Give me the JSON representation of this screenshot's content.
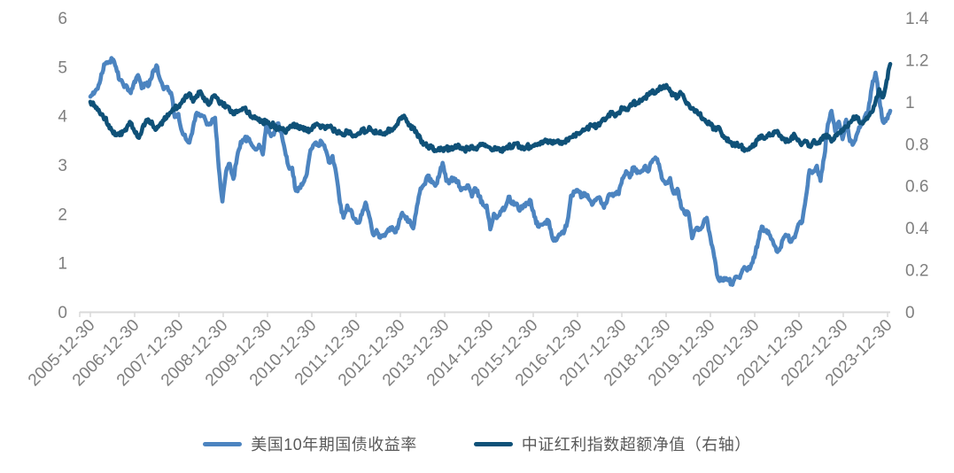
{
  "chart_data": {
    "type": "line",
    "title": "",
    "grid": false,
    "legend_position": "bottom",
    "x_axis": {
      "frequency": "monthly",
      "start": "2005-12",
      "end": "2024-02",
      "tick_labels": [
        "2005-12-30",
        "2006-12-30",
        "2007-12-30",
        "2008-12-30",
        "2009-12-30",
        "2010-12-30",
        "2011-12-30",
        "2012-12-30",
        "2013-12-30",
        "2014-12-30",
        "2015-12-30",
        "2016-12-30",
        "2017-12-30",
        "2018-12-30",
        "2019-12-30",
        "2020-12-30",
        "2021-12-30",
        "2022-12-30",
        "2023-12-30"
      ]
    },
    "left_axis": {
      "range": [
        0,
        6
      ],
      "tick_labels": [
        "0",
        "1",
        "2",
        "3",
        "4",
        "5",
        "6"
      ]
    },
    "right_axis": {
      "range": [
        0,
        1.4
      ],
      "tick_labels": [
        "0",
        "0.2",
        "0.4",
        "0.6",
        "0.8",
        "1",
        "1.2",
        "1.4"
      ]
    },
    "series": [
      {
        "name": "美国10年期国债收益率",
        "axis": "left",
        "color": "#4c84c0",
        "values": [
          4.39,
          4.45,
          4.55,
          4.85,
          5.05,
          5.1,
          5.15,
          4.99,
          4.73,
          4.63,
          4.6,
          4.46,
          4.7,
          4.83,
          4.56,
          4.65,
          4.63,
          4.9,
          5.03,
          4.74,
          4.54,
          4.59,
          4.47,
          3.97,
          4.04,
          3.67,
          3.53,
          3.45,
          3.77,
          4.06,
          3.99,
          3.99,
          3.83,
          3.85,
          3.96,
          2.93,
          2.25,
          2.87,
          3.02,
          2.71,
          3.16,
          3.47,
          3.53,
          3.52,
          3.4,
          3.31,
          3.41,
          3.21,
          3.85,
          3.63,
          3.61,
          3.84,
          3.69,
          3.31,
          2.97,
          2.94,
          2.47,
          2.53,
          2.63,
          2.81,
          3.3,
          3.42,
          3.41,
          3.47,
          3.32,
          3.05,
          3.18,
          2.82,
          2.23,
          1.92,
          2.17,
          2.08,
          1.89,
          1.83,
          1.98,
          2.23,
          1.95,
          1.59,
          1.67,
          1.51,
          1.57,
          1.65,
          1.72,
          1.62,
          1.78,
          2.02,
          1.89,
          1.87,
          1.7,
          2.16,
          2.52,
          2.6,
          2.78,
          2.64,
          2.57,
          2.75,
          3.04,
          2.67,
          2.66,
          2.73,
          2.67,
          2.48,
          2.53,
          2.58,
          2.35,
          2.52,
          2.35,
          2.18,
          2.17,
          1.68,
          2.0,
          1.94,
          2.05,
          2.12,
          2.35,
          2.2,
          2.21,
          2.06,
          2.16,
          2.21,
          2.27,
          1.94,
          1.74,
          1.78,
          1.83,
          1.84,
          1.49,
          1.46,
          1.57,
          1.6,
          1.84,
          2.37,
          2.45,
          2.45,
          2.36,
          2.4,
          2.29,
          2.21,
          2.31,
          2.3,
          2.12,
          2.33,
          2.38,
          2.42,
          2.4,
          2.72,
          2.87,
          2.74,
          2.95,
          2.83,
          2.85,
          2.96,
          2.86,
          3.05,
          3.15,
          3.01,
          2.69,
          2.63,
          2.73,
          2.41,
          2.51,
          2.14,
          2.0,
          2.02,
          1.5,
          1.68,
          1.69,
          1.78,
          1.92,
          1.51,
          1.13,
          0.7,
          0.64,
          0.65,
          0.66,
          0.55,
          0.72,
          0.69,
          0.88,
          0.84,
          0.93,
          1.11,
          1.44,
          1.74,
          1.65,
          1.58,
          1.45,
          1.24,
          1.3,
          1.52,
          1.55,
          1.43,
          1.52,
          1.79,
          1.83,
          2.32,
          2.89,
          2.85,
          2.98,
          2.67,
          3.15,
          3.83,
          4.1,
          3.68,
          3.88,
          3.52,
          3.92,
          3.48,
          3.44,
          3.64,
          3.81,
          3.97,
          4.09,
          4.59,
          4.88,
          4.37,
          3.88,
          3.95,
          4.1
        ]
      },
      {
        "name": "中证红利指数超额净值（右轴）",
        "axis": "right",
        "color": "#0f5178",
        "values": [
          1.0,
          0.98,
          0.96,
          0.94,
          0.92,
          0.89,
          0.86,
          0.84,
          0.84,
          0.86,
          0.88,
          0.9,
          0.86,
          0.83,
          0.86,
          0.9,
          0.91,
          0.89,
          0.87,
          0.89,
          0.91,
          0.94,
          0.95,
          0.97,
          0.98,
          1.0,
          1.03,
          1.04,
          1.0,
          1.03,
          1.05,
          1.02,
          0.99,
          1.01,
          1.03,
          1.0,
          0.99,
          0.98,
          0.96,
          0.94,
          0.95,
          0.96,
          0.97,
          0.95,
          0.93,
          0.92,
          0.92,
          0.9,
          0.91,
          0.89,
          0.89,
          0.87,
          0.87,
          0.86,
          0.87,
          0.88,
          0.89,
          0.87,
          0.88,
          0.86,
          0.87,
          0.88,
          0.89,
          0.88,
          0.87,
          0.88,
          0.87,
          0.86,
          0.85,
          0.84,
          0.86,
          0.85,
          0.84,
          0.85,
          0.87,
          0.86,
          0.88,
          0.86,
          0.85,
          0.86,
          0.85,
          0.86,
          0.87,
          0.88,
          0.91,
          0.93,
          0.92,
          0.89,
          0.87,
          0.85,
          0.82,
          0.8,
          0.79,
          0.78,
          0.77,
          0.78,
          0.77,
          0.78,
          0.77,
          0.78,
          0.79,
          0.78,
          0.77,
          0.78,
          0.79,
          0.78,
          0.79,
          0.8,
          0.79,
          0.78,
          0.77,
          0.78,
          0.77,
          0.78,
          0.79,
          0.78,
          0.8,
          0.79,
          0.78,
          0.79,
          0.78,
          0.79,
          0.8,
          0.81,
          0.82,
          0.81,
          0.8,
          0.81,
          0.8,
          0.81,
          0.82,
          0.83,
          0.84,
          0.85,
          0.86,
          0.87,
          0.88,
          0.89,
          0.88,
          0.9,
          0.92,
          0.93,
          0.95,
          0.93,
          0.95,
          0.97,
          0.96,
          0.98,
          1.0,
          0.99,
          1.01,
          1.02,
          1.03,
          1.05,
          1.04,
          1.06,
          1.07,
          1.08,
          1.05,
          1.03,
          1.02,
          1.04,
          1.01,
          0.99,
          0.97,
          0.96,
          0.94,
          0.92,
          0.9,
          0.89,
          0.87,
          0.88,
          0.85,
          0.83,
          0.81,
          0.79,
          0.8,
          0.79,
          0.78,
          0.77,
          0.78,
          0.8,
          0.82,
          0.84,
          0.83,
          0.85,
          0.84,
          0.86,
          0.84,
          0.82,
          0.81,
          0.83,
          0.84,
          0.82,
          0.8,
          0.81,
          0.79,
          0.81,
          0.8,
          0.82,
          0.84,
          0.83,
          0.81,
          0.84,
          0.85,
          0.86,
          0.88,
          0.9,
          0.93,
          0.92,
          0.9,
          0.91,
          0.93,
          0.95,
          1.0,
          1.06,
          1.02,
          1.1,
          1.18
        ]
      }
    ]
  },
  "legend": {
    "items": [
      {
        "label": "美国10年期国债收益率"
      },
      {
        "label": "中证红利指数超额净值（右轴）"
      }
    ]
  },
  "colors": {
    "series1": "#4c84c0",
    "series2": "#0f5178",
    "axis_text": "#7f7f7f",
    "axis_line": "#d9d9d9",
    "legend_text": "#595959",
    "background": "#ffffff"
  }
}
